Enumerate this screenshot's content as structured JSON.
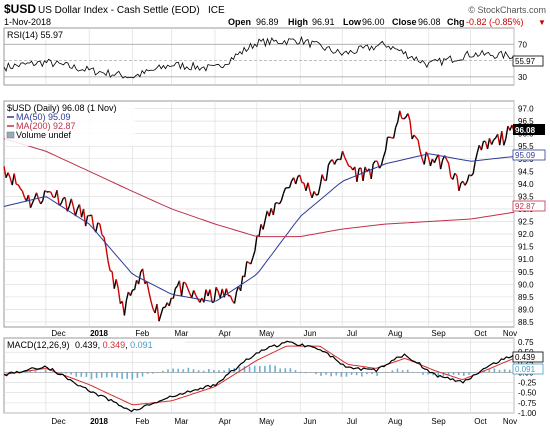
{
  "header": {
    "symbol": "$USD",
    "name": "US Dollar Index - Cash Settle (EOD)",
    "exchange": "ICE",
    "date": "1-Nov-2018",
    "credit": "© StockCharts.com",
    "open_label": "Open",
    "open": "96.89",
    "high_label": "High",
    "high": "96.91",
    "low_label": "Low",
    "low": "96.00",
    "close_label": "Close",
    "close": "96.08",
    "chg_label": "Chg",
    "chg": "-0.82 (-0.85%)",
    "chg_marker": "▼"
  },
  "colors": {
    "price": "#000000",
    "price_down": "#cc0000",
    "ma50": "#2b3a9a",
    "ma200": "#c0304a",
    "macd": "#000000",
    "signal": "#d43030",
    "hist": "#4a9ac8",
    "rsi": "#000000",
    "grid": "#d9d9d9"
  },
  "rsi_panel": {
    "label": "RSI(14) 55.97",
    "value_tag": "55.97",
    "levels": [
      "70",
      "50",
      "30"
    ]
  },
  "price_panel": {
    "label": "$USD (Daily) 96.08 (1 Nov)",
    "ma50_label": "MA(50) 95.09",
    "ma200_label": "MA(200) 92.87",
    "volume_label": "Volume undef",
    "last_tag": "96.08",
    "ma50_tag": "95.09",
    "ma200_tag": "92.87"
  },
  "macd_panel": {
    "label_main": "MACD(12,26,9)",
    "macd_value": "0.439",
    "signal_value": "0.349",
    "hist_value": "0.091",
    "tags": [
      "0.439",
      "0.091"
    ]
  },
  "x_axis": {
    "labels": [
      "Dec",
      "2018",
      "Feb",
      "Mar",
      "Apr",
      "May",
      "Jun",
      "Jul",
      "Aug",
      "Sep",
      "Oct",
      "Nov"
    ],
    "bold": [
      false,
      true,
      false,
      false,
      false,
      false,
      false,
      false,
      false,
      false,
      false,
      false
    ]
  },
  "chart_data": [
    {
      "type": "line",
      "title": "RSI(14) 55.97",
      "ylim": [
        20,
        90
      ],
      "ticks": [
        "70",
        "50",
        "30"
      ],
      "value": 55.97,
      "x": [
        "2017-11-01",
        "2017-12-01",
        "2018-01-01",
        "2018-02-01",
        "2018-03-01",
        "2018-04-01",
        "2018-05-01",
        "2018-06-01",
        "2018-07-01",
        "2018-08-01",
        "2018-09-01",
        "2018-10-01",
        "2018-11-01"
      ],
      "values": [
        42,
        48,
        38,
        30,
        45,
        40,
        72,
        75,
        58,
        70,
        45,
        58,
        56
      ]
    },
    {
      "type": "line",
      "title": "$USD (Daily) 96.08 (1 Nov)",
      "ylim": [
        88.3,
        97.3
      ],
      "ticks": [
        "97.0",
        "96.5",
        "96.0",
        "95.5",
        "95.0",
        "94.5",
        "94.0",
        "93.5",
        "93.0",
        "92.5",
        "92.0",
        "91.5",
        "91.0",
        "90.5",
        "90.0",
        "89.5",
        "89.0",
        "88.5"
      ],
      "series": [
        {
          "name": "$USD",
          "x": [
            "2017-11-01",
            "2017-11-20",
            "2017-12-05",
            "2017-12-20",
            "2018-01-08",
            "2018-01-25",
            "2018-02-08",
            "2018-02-20",
            "2018-03-05",
            "2018-03-20",
            "2018-04-05",
            "2018-04-17",
            "2018-05-01",
            "2018-05-15",
            "2018-05-28",
            "2018-06-12",
            "2018-06-28",
            "2018-07-12",
            "2018-07-26",
            "2018-08-14",
            "2018-08-28",
            "2018-09-12",
            "2018-09-25",
            "2018-10-08",
            "2018-10-22",
            "2018-11-01"
          ],
          "values": [
            94.7,
            93.3,
            93.7,
            93.1,
            92.2,
            89.0,
            90.3,
            88.8,
            89.9,
            89.4,
            89.6,
            89.5,
            91.9,
            93.2,
            94.3,
            93.6,
            95.2,
            94.4,
            94.6,
            96.9,
            95.0,
            94.9,
            93.8,
            95.3,
            95.8,
            96.08
          ]
        },
        {
          "name": "MA(50)",
          "x": [
            "2017-11-01",
            "2017-12-01",
            "2018-01-01",
            "2018-02-01",
            "2018-03-01",
            "2018-04-01",
            "2018-05-01",
            "2018-06-01",
            "2018-07-01",
            "2018-08-01",
            "2018-09-01",
            "2018-10-01",
            "2018-11-01"
          ],
          "values": [
            93.1,
            93.5,
            92.4,
            90.4,
            89.6,
            89.3,
            90.4,
            92.7,
            94.1,
            94.8,
            95.2,
            94.9,
            95.09
          ]
        },
        {
          "name": "MA(200)",
          "x": [
            "2017-11-01",
            "2017-12-01",
            "2018-01-01",
            "2018-02-01",
            "2018-03-01",
            "2018-04-01",
            "2018-05-01",
            "2018-06-01",
            "2018-07-01",
            "2018-08-01",
            "2018-09-01",
            "2018-10-01",
            "2018-11-01"
          ],
          "values": [
            95.8,
            95.3,
            94.5,
            93.7,
            93.0,
            92.4,
            91.9,
            91.9,
            92.2,
            92.4,
            92.5,
            92.6,
            92.87
          ]
        }
      ]
    },
    {
      "type": "line",
      "title": "MACD(12,26,9)",
      "ylim": [
        -1.0,
        0.85
      ],
      "ticks": [
        "0.75",
        "0.50",
        "0.25",
        "0.00",
        "-0.25",
        "-0.50",
        "-0.75",
        "-1.00"
      ],
      "series": [
        {
          "name": "MACD",
          "x": [
            "2017-11-01",
            "2017-12-01",
            "2018-01-01",
            "2018-02-01",
            "2018-03-01",
            "2018-04-01",
            "2018-05-01",
            "2018-05-22",
            "2018-06-15",
            "2018-07-05",
            "2018-07-25",
            "2018-08-15",
            "2018-09-05",
            "2018-09-25",
            "2018-10-15",
            "2018-11-01"
          ],
          "values": [
            -0.05,
            0.15,
            -0.45,
            -0.95,
            -0.6,
            -0.3,
            0.5,
            0.75,
            0.6,
            0.1,
            0.05,
            0.45,
            -0.05,
            -0.25,
            0.2,
            0.439
          ]
        },
        {
          "name": "Signal",
          "x": [
            "2017-11-01",
            "2017-12-01",
            "2018-01-01",
            "2018-02-01",
            "2018-03-01",
            "2018-04-01",
            "2018-05-01",
            "2018-05-22",
            "2018-06-15",
            "2018-07-05",
            "2018-07-25",
            "2018-08-15",
            "2018-09-05",
            "2018-09-25",
            "2018-10-15",
            "2018-11-01"
          ],
          "values": [
            -0.05,
            0.1,
            -0.3,
            -0.8,
            -0.7,
            -0.35,
            0.3,
            0.65,
            0.65,
            0.2,
            0.1,
            0.35,
            0.05,
            -0.18,
            0.1,
            0.349
          ]
        }
      ]
    }
  ]
}
